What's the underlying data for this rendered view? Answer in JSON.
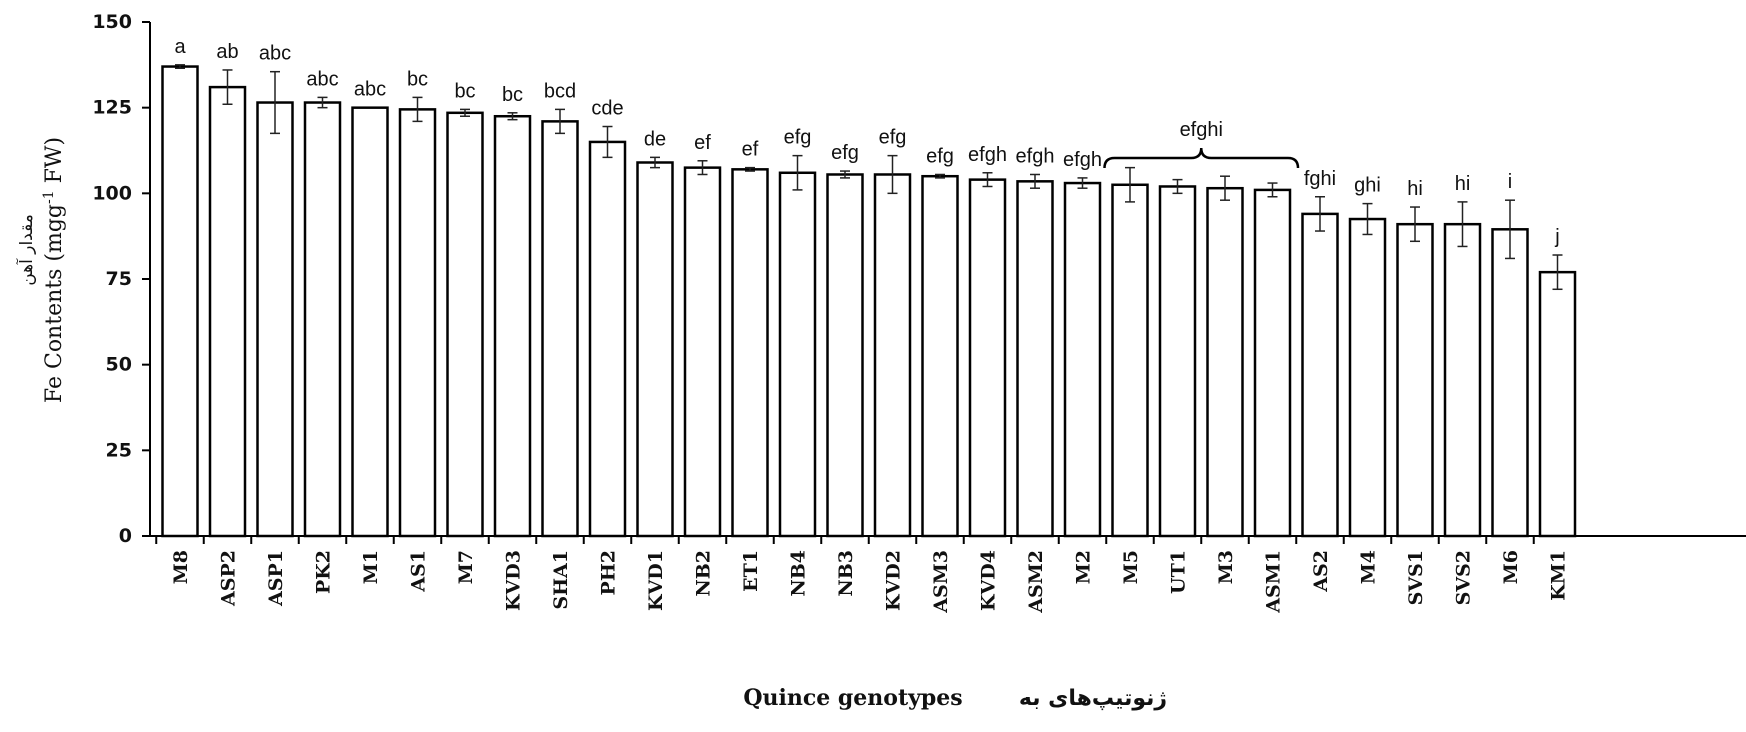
{
  "chart_data": {
    "type": "bar",
    "title": "",
    "xlabel": "Quince genotypes",
    "xlabel_fa": "ژنوتیپ‌های به",
    "ylabel": "Fe Contents (mgg-1 FW)",
    "ylabel_main": "Fe Contents (mgg",
    "ylabel_sup": "-1",
    "ylabel_tail": " FW)",
    "ylabel_fa": "مقدار آهن",
    "ylim": [
      0,
      150
    ],
    "yticks": [
      "0",
      "25",
      "50",
      "75",
      "100",
      "125",
      "150"
    ],
    "grid": false,
    "bar_color": "#ffffff",
    "edge_color": "#000000",
    "categories": [
      "M8",
      "ASP2",
      "ASP1",
      "PK2",
      "M1",
      "AS1",
      "M7",
      "KVD3",
      "SHA1",
      "PH2",
      "KVD1",
      "NB2",
      "ET1",
      "NB4",
      "NB3",
      "KVD2",
      "ASM3",
      "KVD4",
      "ASM2",
      "M2",
      "M5",
      "UT1",
      "M3",
      "ASM1",
      "AS2",
      "M4",
      "SVS1",
      "SVS2",
      "M6",
      "KM1"
    ],
    "values": [
      137,
      131,
      126.5,
      126.5,
      125,
      124.5,
      123.5,
      122.5,
      121,
      115,
      109,
      107.5,
      107,
      106,
      105.5,
      105.5,
      105,
      104,
      103.5,
      103,
      102.5,
      102,
      101.5,
      101,
      94,
      92.5,
      91,
      91,
      89.5,
      77
    ],
    "errors": [
      0.5,
      5,
      9,
      1.5,
      0,
      3.5,
      1,
      1,
      3.5,
      4.5,
      1.5,
      2,
      0.5,
      5,
      1,
      5.5,
      0.5,
      2,
      2,
      1.5,
      5,
      2,
      3.5,
      2,
      5,
      4.5,
      5,
      6.5,
      8.5,
      5
    ],
    "significance_letters": [
      "a",
      "ab",
      "abc",
      "abc",
      "abc",
      "bc",
      "bc",
      "bc",
      "bcd",
      "cde",
      "de",
      "ef",
      "ef",
      "efg",
      "efg",
      "efg",
      "efg",
      "efgh",
      "efgh",
      "efgh",
      "",
      "",
      "",
      "",
      "fghi",
      "ghi",
      "hi",
      "hi",
      "i",
      "j"
    ],
    "group_annotation": {
      "label": "efghi",
      "from": "M5",
      "to": "ASM1"
    }
  }
}
